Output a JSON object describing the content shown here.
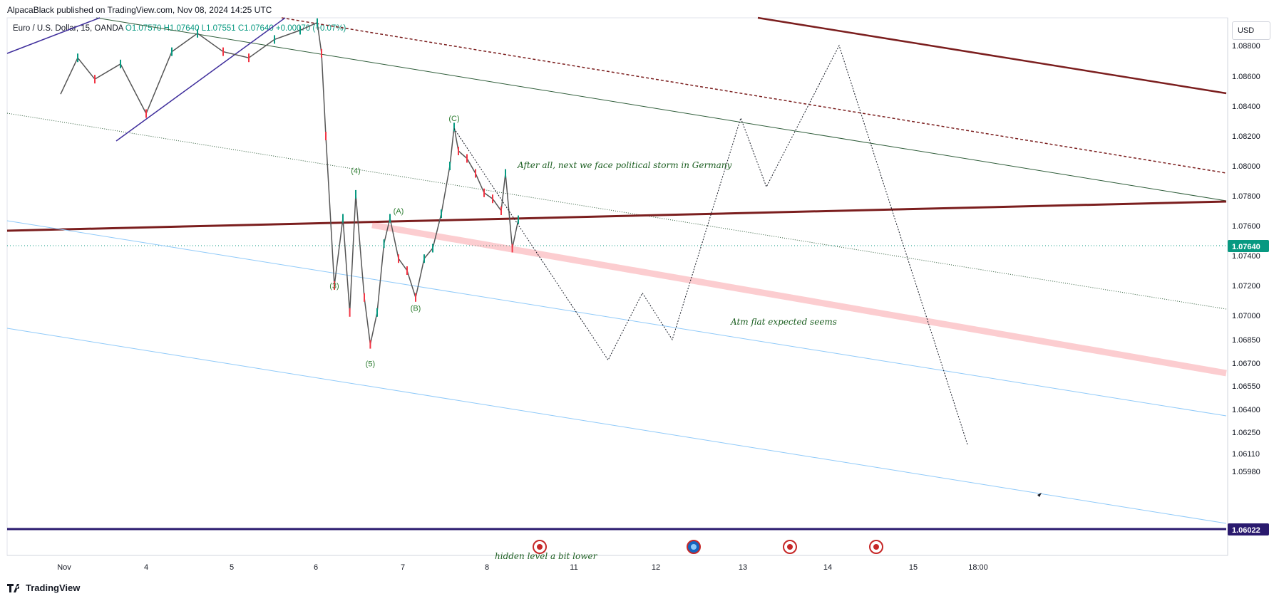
{
  "header": {
    "published": "AlpacaBlack published on TradingView.com, Nov 08, 2024 14:25 UTC"
  },
  "legend": {
    "symbol": "Euro / U.S. Dollar, 15, OANDA",
    "open": "O1.07570",
    "high": "H1.07640",
    "low": "L1.07551",
    "close": "C1.07640",
    "change": "+0.00070 (+0.07%)"
  },
  "currency_button": "USD",
  "footer_brand": "TradingView",
  "colors": {
    "up": "#089981",
    "down": "#f23645",
    "wave_label": "#2e7d32",
    "channel_dark": "#7b1e1e",
    "support": "#2a1a6e",
    "projection": "#131722"
  },
  "chart_data": {
    "type": "line",
    "instrument": "Euro / U.S. Dollar, 15, OANDA",
    "price_axis": {
      "ticks": [
        "1.08800",
        "1.08600",
        "1.08400",
        "1.08200",
        "1.08000",
        "1.07800",
        "1.07600",
        "1.07400",
        "1.07200",
        "1.07000",
        "1.06850",
        "1.06700",
        "1.06550",
        "1.06400",
        "1.06250",
        "1.06110",
        "1.05980"
      ],
      "tick_values": [
        1.088,
        1.086,
        1.084,
        1.082,
        1.08,
        1.078,
        1.076,
        1.074,
        1.072,
        1.07,
        1.0685,
        1.067,
        1.0655,
        1.064,
        1.0625,
        1.0611,
        1.0598
      ],
      "current_price": "1.07640",
      "support_price": "1.06022"
    },
    "time_axis": {
      "labels": [
        "Nov",
        "4",
        "5",
        "6",
        "7",
        "8",
        "11",
        "12",
        "13",
        "14",
        "15",
        "18:00"
      ],
      "positions": [
        0.1,
        1.0,
        2.0,
        3.0,
        4.0,
        5.0,
        6.0,
        7.0,
        8.0,
        9.0,
        10.0,
        10.65
      ]
    },
    "price_series": {
      "name": "EURUSD",
      "x": [
        0.0,
        0.2,
        0.4,
        0.7,
        1.0,
        1.3,
        1.6,
        1.9,
        2.2,
        2.5,
        2.8,
        3.0,
        3.05,
        3.1,
        3.2,
        3.3,
        3.38,
        3.45,
        3.55,
        3.62,
        3.7,
        3.78,
        3.85,
        3.95,
        4.05,
        4.15,
        4.25,
        4.35,
        4.45,
        4.55,
        4.6,
        4.65,
        4.75,
        4.85,
        4.95,
        5.05,
        5.15,
        5.2,
        5.28,
        5.35
      ],
      "y": [
        1.0848,
        1.0872,
        1.0858,
        1.0868,
        1.0835,
        1.0876,
        1.0888,
        1.0876,
        1.0872,
        1.0884,
        1.089,
        1.0895,
        1.0875,
        1.082,
        1.072,
        1.0765,
        1.0702,
        1.0781,
        1.0712,
        1.0682,
        1.0702,
        1.0748,
        1.0765,
        1.0738,
        1.073,
        1.0712,
        1.0738,
        1.0745,
        1.0768,
        1.08,
        1.0826,
        1.081,
        1.0805,
        1.0795,
        1.0782,
        1.0778,
        1.077,
        1.0795,
        1.0745,
        1.0764
      ]
    },
    "wave_labels": [
      {
        "text": "(C)",
        "x": 4.6,
        "y": 1.083
      },
      {
        "text": "(4)",
        "x": 3.45,
        "y": 1.0795
      },
      {
        "text": "(A)",
        "x": 3.95,
        "y": 1.0768
      },
      {
        "text": "(3)",
        "x": 3.2,
        "y": 1.0718
      },
      {
        "text": "(B)",
        "x": 4.15,
        "y": 1.0703
      },
      {
        "text": "(5)",
        "x": 3.62,
        "y": 1.0668
      }
    ],
    "annotations": [
      {
        "text": "After all, next we face political storm in Germany"
      },
      {
        "text": "Atm flat expected seems"
      },
      {
        "text": "hidden level a bit lower"
      }
    ],
    "projection_path": {
      "x": [
        4.6,
        6.4,
        6.8,
        7.15,
        7.95,
        8.25,
        9.1,
        10.6
      ],
      "y": [
        1.0825,
        1.0672,
        1.0715,
        1.0685,
        1.0832,
        1.0786,
        1.088,
        1.0617
      ]
    },
    "grid": false,
    "legend_position": "top-left"
  }
}
